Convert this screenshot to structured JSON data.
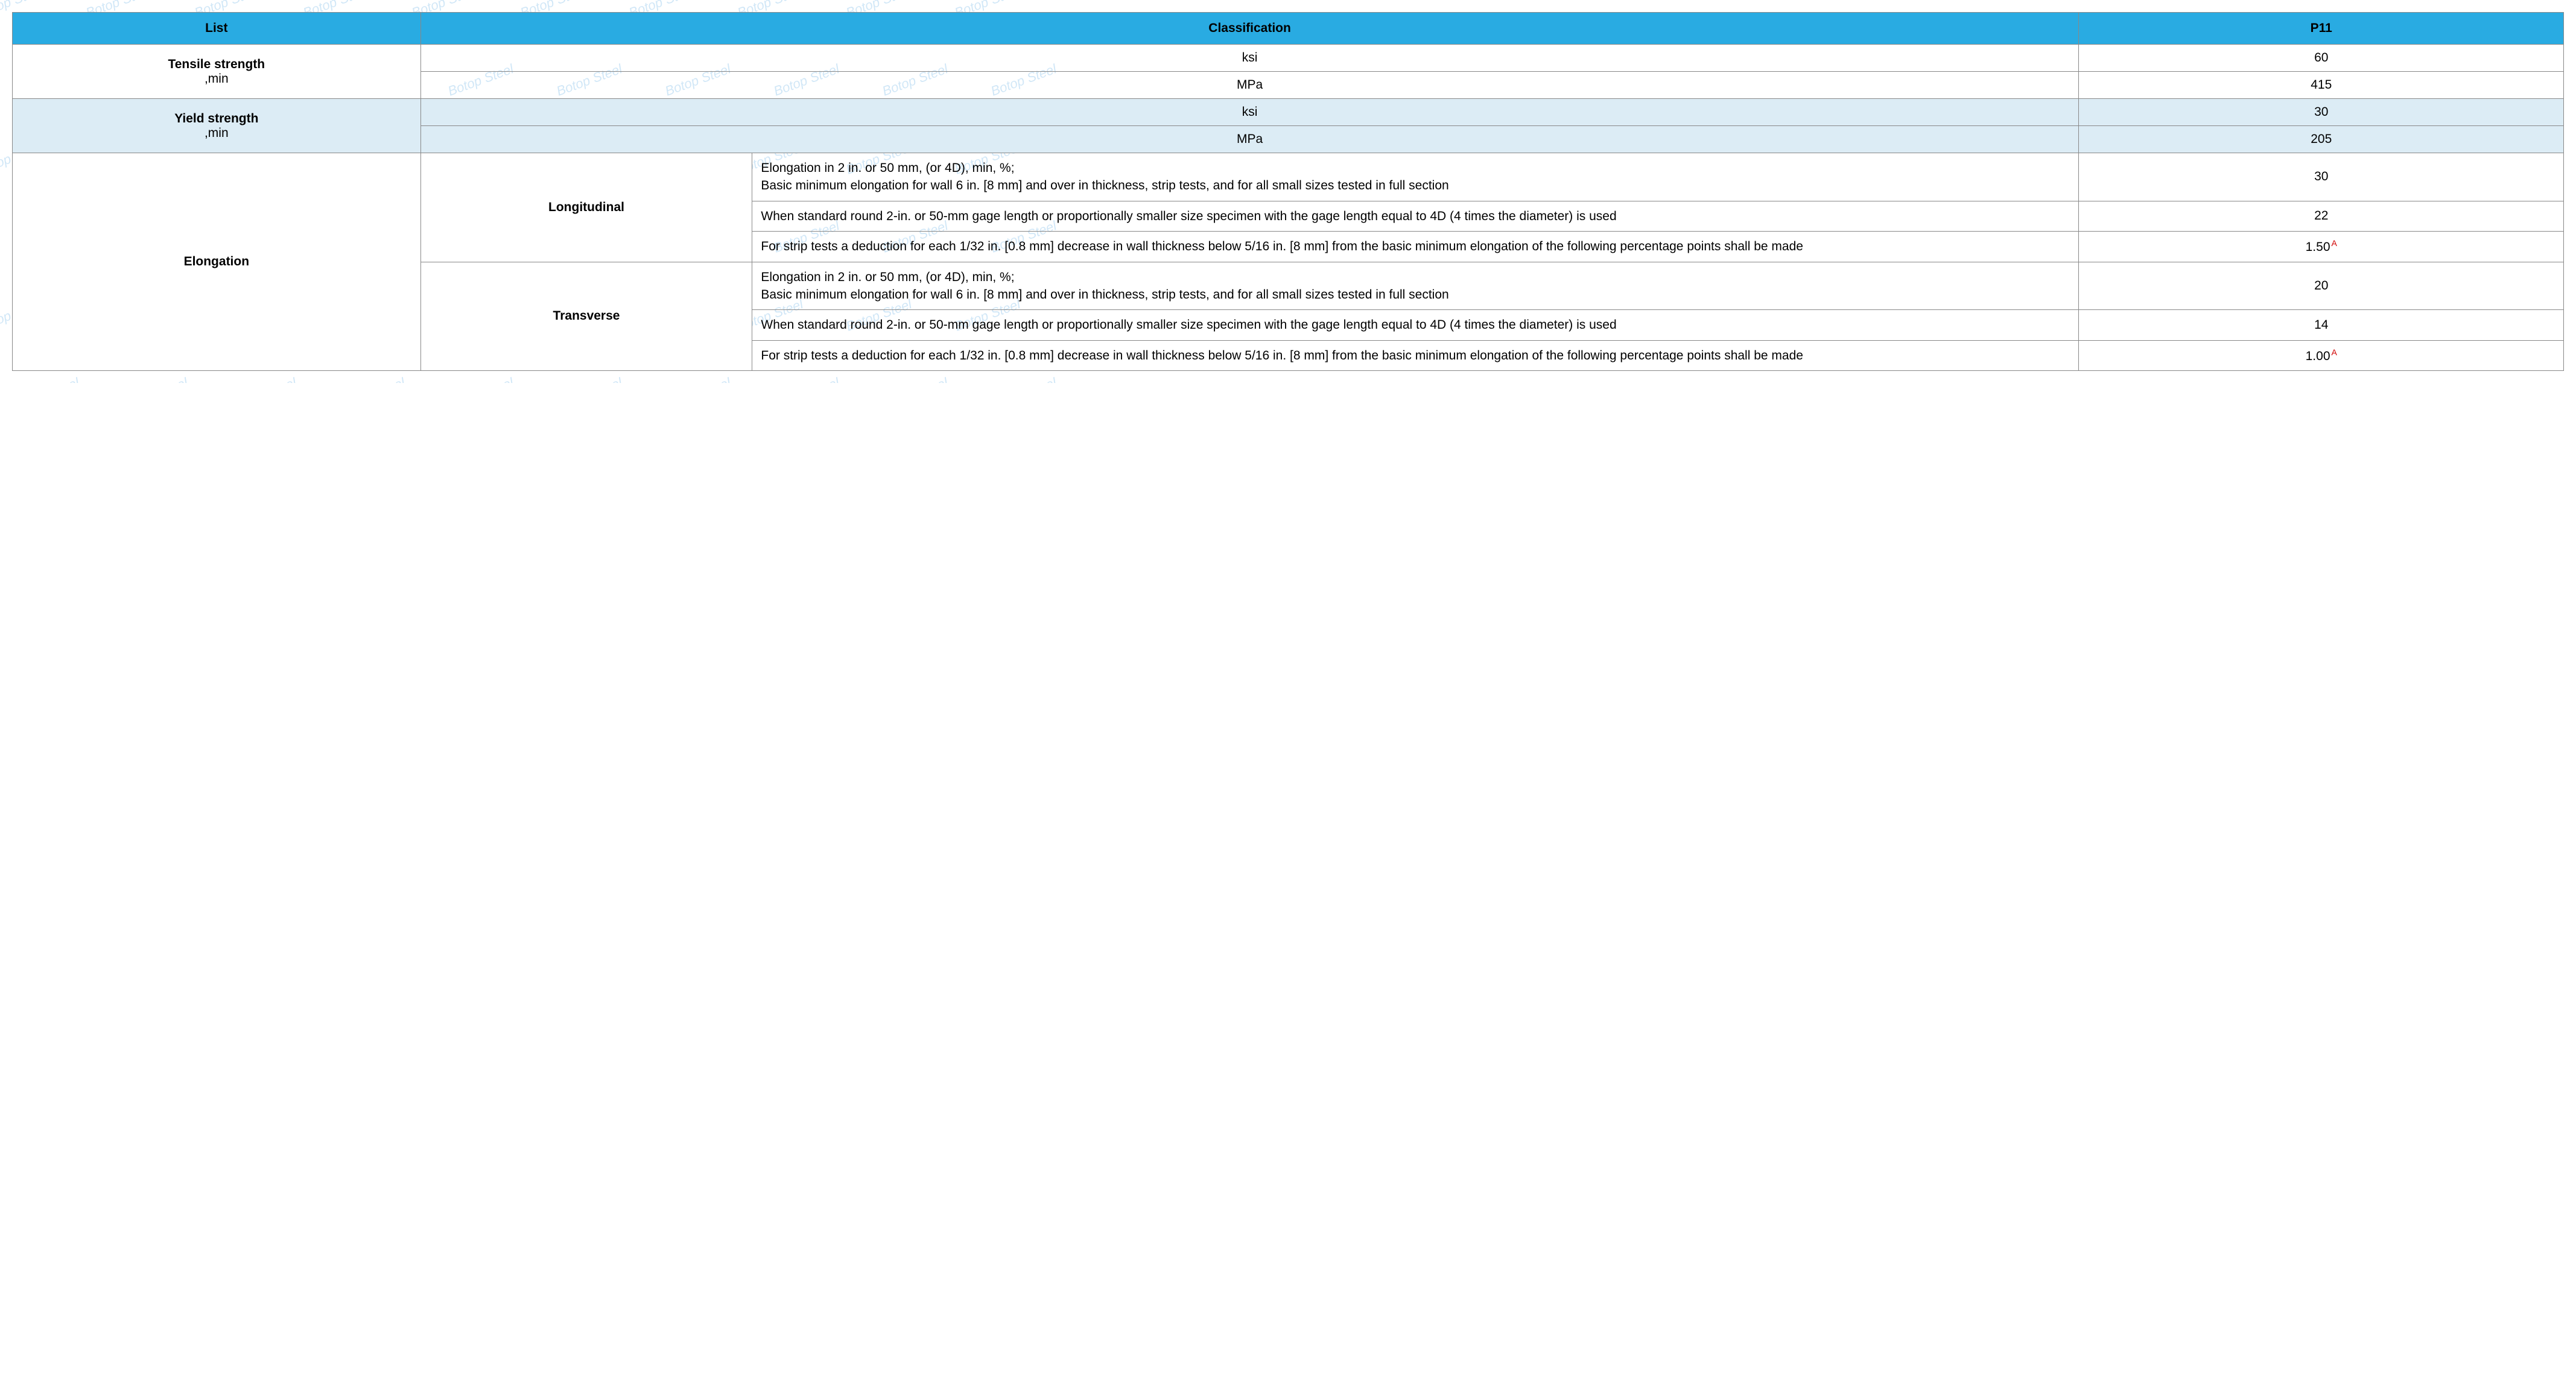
{
  "watermark_text": "Botop Steel",
  "header": {
    "list": "List",
    "classification": "Classification",
    "p11": "P11"
  },
  "tensile": {
    "label": "Tensile strength",
    "sub": ",min",
    "rows": [
      {
        "unit": "ksi",
        "value": "60"
      },
      {
        "unit": "MPa",
        "value": "415"
      }
    ]
  },
  "yield": {
    "label": "Yield strength",
    "sub": ",min",
    "rows": [
      {
        "unit": "ksi",
        "value": "30"
      },
      {
        "unit": "MPa",
        "value": "205"
      }
    ]
  },
  "elongation": {
    "label": "Elongation",
    "directions": [
      {
        "name": "Longitudinal",
        "rows": [
          {
            "desc": "Elongation in 2 in. or 50 mm, (or 4D), min, %;\nBasic minimum elongation for wall 6 in. [8 mm] and over in thickness, strip tests, and for all small sizes tested in full section",
            "value": "30",
            "note": ""
          },
          {
            "desc": "When standard round 2-in. or 50-mm gage length or proportionally smaller size specimen with the gage length equal to 4D (4 times the diameter) is used",
            "value": "22",
            "note": ""
          },
          {
            "desc": "For strip tests a deduction for each 1/32 in. [0.8 mm] decrease in wall thickness below 5/16 in. [8 mm] from the basic minimum elongation of the following percentage points shall be made",
            "value": "1.50",
            "note": "A"
          }
        ]
      },
      {
        "name": "Transverse",
        "rows": [
          {
            "desc": "Elongation in 2 in. or 50 mm, (or 4D), min, %;\nBasic minimum elongation for wall 6 in. [8 mm] and over in thickness, strip tests, and for all small sizes tested in full section",
            "value": "20",
            "note": ""
          },
          {
            "desc": "When standard round 2-in. or 50-mm gage length or proportionally smaller size specimen with the gage length equal to 4D (4 times the diameter) is used",
            "value": "14",
            "note": ""
          },
          {
            "desc": "For strip tests a deduction for each 1/32 in. [0.8 mm] decrease in wall thickness below 5/16 in. [8 mm] from the basic minimum elongation of the following percentage points shall be made",
            "value": "1.00",
            "note": "A"
          }
        ]
      }
    ]
  },
  "styles": {
    "header_bg": "#29abe2",
    "shade_bg": "#dcecf5",
    "border_color": "#888888",
    "watermark_color": "#4da3e0",
    "note_color": "#d00000",
    "font_size_pt": 16,
    "columns": {
      "list_w": "16%",
      "dir_w": "13%",
      "class_w": "52%",
      "val_w": "19%"
    }
  }
}
